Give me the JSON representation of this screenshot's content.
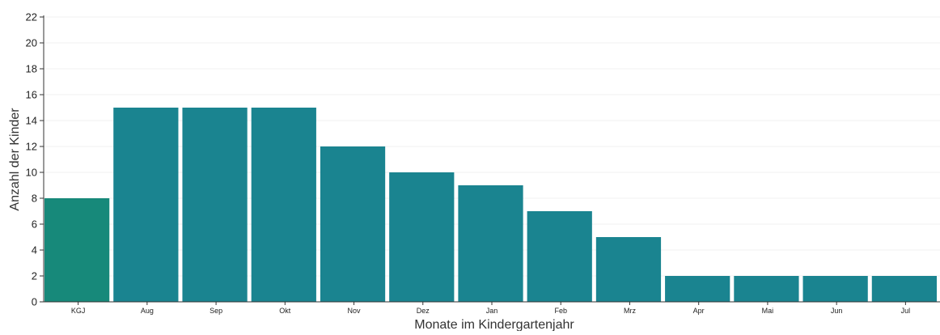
{
  "chart_data": {
    "type": "bar",
    "categories": [
      "KGJ",
      "Aug",
      "Sep",
      "Okt",
      "Nov",
      "Dez",
      "Jan",
      "Feb",
      "Mrz",
      "Apr",
      "Mai",
      "Jun",
      "Jul"
    ],
    "values": [
      8,
      15,
      15,
      15,
      12,
      10,
      9,
      7,
      5,
      2,
      2,
      2,
      2
    ],
    "xlabel": "Monate im Kindergartenjahr",
    "ylabel": "Anzahl der Kinder",
    "ylim": [
      0,
      22
    ],
    "yticks": [
      0,
      2,
      4,
      6,
      8,
      10,
      12,
      14,
      16,
      18,
      20,
      22
    ],
    "grid": true,
    "colors": {
      "first_bar": "#17897a",
      "bar": "#1a8490",
      "grid": "#f0f0f0",
      "axis": "#333333"
    }
  }
}
